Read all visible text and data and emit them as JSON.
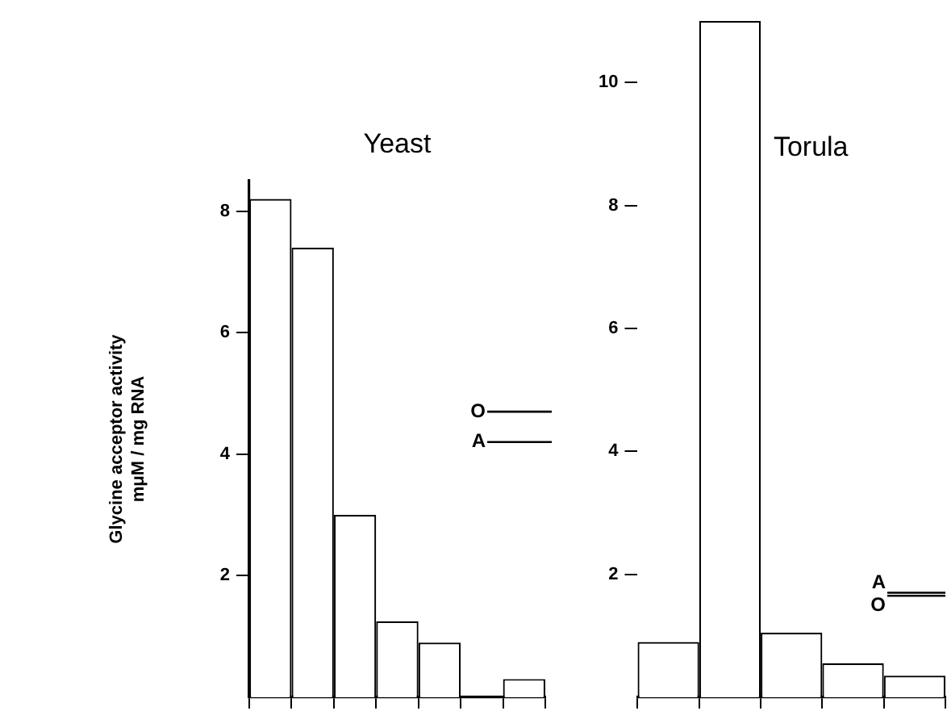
{
  "chart_data": [
    {
      "type": "bar",
      "title": "Yeast",
      "ylabel": "Glycine acceptor activity\nmμM / mg RNA",
      "categories": [
        null,
        null,
        null,
        null,
        null,
        null,
        null
      ],
      "values": [
        8.2,
        7.4,
        3.0,
        1.25,
        0.9,
        0,
        0.3
      ],
      "color": "#ffffff",
      "ylim": [
        0,
        8.5
      ],
      "yticks": [
        2,
        4,
        6,
        8
      ],
      "grid": false,
      "tick_labels": "y",
      "ref_lines": [
        {
          "axis": "y",
          "value": 4.7,
          "label": "O"
        },
        {
          "axis": "y",
          "value": 4.2,
          "label": "A"
        }
      ]
    },
    {
      "type": "bar",
      "title": "Torula",
      "categories": [
        null,
        null,
        null,
        null,
        null
      ],
      "values": [
        0.9,
        11.0,
        1.05,
        0.55,
        0.35
      ],
      "color": "#ffffff",
      "ylim": [
        0,
        11
      ],
      "yticks": [
        2,
        4,
        6,
        8,
        10
      ],
      "grid": false,
      "tick_labels": "y",
      "ref_lines": [
        {
          "axis": "y",
          "value": 1.7,
          "label": "A"
        },
        {
          "axis": "y",
          "value": 1.65,
          "label": "O"
        }
      ]
    }
  ]
}
